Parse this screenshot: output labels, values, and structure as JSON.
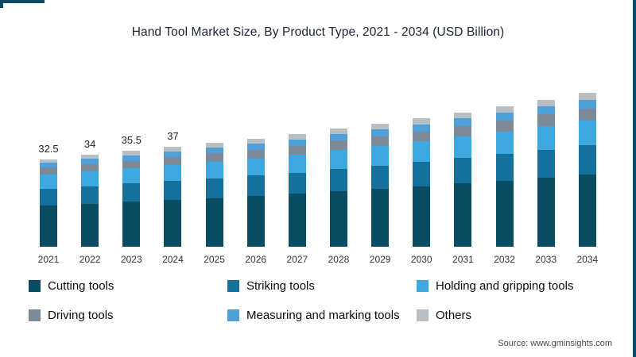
{
  "frame": {
    "accent_color": "#0a4d62"
  },
  "title": "Hand Tool Market Size, By Product Type, 2021 - 2034 (USD Billion)",
  "source": "Source: www.gminsights.com",
  "chart_data": {
    "type": "bar",
    "stacked": true,
    "title": "Hand Tool Market Size, By Product Type, 2021 - 2034 (USD Billion)",
    "xlabel": "",
    "ylabel": "USD Billion",
    "ylim": [
      0,
      60
    ],
    "grid": false,
    "legend_position": "bottom",
    "categories": [
      "2021",
      "2022",
      "2023",
      "2024",
      "2025",
      "2026",
      "2027",
      "2028",
      "2029",
      "2030",
      "2031",
      "2032",
      "2033",
      "2034"
    ],
    "totals": [
      32.5,
      34,
      35.5,
      37,
      38.5,
      40,
      41.8,
      43.7,
      45.6,
      47.6,
      49.7,
      52,
      54.5,
      57
    ],
    "bar_total_labels": [
      "32.5",
      "34",
      "35.5",
      "37",
      "",
      "",
      "",
      "",
      "",
      "",
      "",
      "",
      "",
      ""
    ],
    "series": [
      {
        "name": "Cutting tools",
        "color": "#0a4d62",
        "values": [
          15.3,
          16.0,
          16.7,
          17.4,
          18.1,
          18.8,
          19.6,
          20.5,
          21.4,
          22.4,
          23.4,
          24.4,
          25.6,
          26.8
        ]
      },
      {
        "name": "Striking tools",
        "color": "#15719c",
        "values": [
          6.2,
          6.5,
          6.7,
          7.0,
          7.3,
          7.6,
          7.9,
          8.3,
          8.7,
          9.0,
          9.4,
          9.9,
          10.4,
          10.8
        ]
      },
      {
        "name": "Holding and gripping tools",
        "color": "#3da9e0",
        "values": [
          5.2,
          5.4,
          5.7,
          5.9,
          6.2,
          6.4,
          6.7,
          7.0,
          7.3,
          7.6,
          8.0,
          8.3,
          8.7,
          9.1
        ]
      },
      {
        "name": "Driving tools",
        "color": "#7b8a96",
        "values": [
          2.6,
          2.7,
          2.8,
          3.0,
          3.1,
          3.2,
          3.3,
          3.5,
          3.6,
          3.8,
          4.0,
          4.2,
          4.4,
          4.6
        ]
      },
      {
        "name": "Measuring and marking tools",
        "color": "#4f9fd8",
        "values": [
          1.8,
          1.9,
          2.0,
          2.0,
          2.1,
          2.2,
          2.3,
          2.4,
          2.5,
          2.6,
          2.7,
          2.9,
          3.0,
          3.1
        ]
      },
      {
        "name": "Others",
        "color": "#b7bec4",
        "values": [
          1.4,
          1.5,
          1.6,
          1.7,
          1.7,
          1.8,
          2.0,
          2.0,
          2.1,
          2.2,
          2.2,
          2.3,
          2.4,
          2.6
        ]
      }
    ]
  }
}
